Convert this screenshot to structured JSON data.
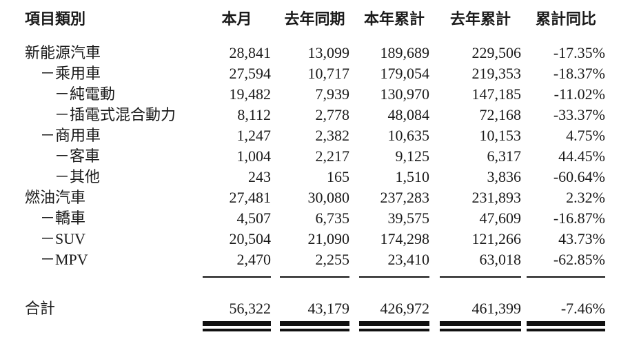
{
  "document": {
    "type": "monthly-sales-table",
    "colors": {
      "text": "#1b1b1b",
      "rule": "#111111",
      "background": "#ffffff"
    }
  },
  "table": {
    "columns": [
      {
        "label": "項目類別"
      },
      {
        "label": "本月"
      },
      {
        "label": "去年同期"
      },
      {
        "label": "本年累計"
      },
      {
        "label": "去年累計"
      },
      {
        "label": "累計同比"
      }
    ],
    "rows": [
      {
        "label": "新能源汽車",
        "indent": 0,
        "values": [
          "28,841",
          "13,099",
          "189,689",
          "229,506",
          "-17.35%"
        ]
      },
      {
        "label": "－乘用車",
        "indent": 1,
        "values": [
          "27,594",
          "10,717",
          "179,054",
          "219,353",
          "-18.37%"
        ]
      },
      {
        "label": "－純電動",
        "indent": 2,
        "values": [
          "19,482",
          "7,939",
          "130,970",
          "147,185",
          "-11.02%"
        ]
      },
      {
        "label": "－插電式混合動力",
        "indent": 2,
        "values": [
          "8,112",
          "2,778",
          "48,084",
          "72,168",
          "-33.37%"
        ]
      },
      {
        "label": "－商用車",
        "indent": 1,
        "values": [
          "1,247",
          "2,382",
          "10,635",
          "10,153",
          "4.75%"
        ]
      },
      {
        "label": "－客車",
        "indent": 2,
        "values": [
          "1,004",
          "2,217",
          "9,125",
          "6,317",
          "44.45%"
        ]
      },
      {
        "label": "－其他",
        "indent": 2,
        "values": [
          "243",
          "165",
          "1,510",
          "3,836",
          "-60.64%"
        ]
      },
      {
        "label": "燃油汽車",
        "indent": 0,
        "values": [
          "27,481",
          "30,080",
          "237,283",
          "231,893",
          "2.32%"
        ]
      },
      {
        "label": "－轎車",
        "indent": 1,
        "values": [
          "4,507",
          "6,735",
          "39,575",
          "47,609",
          "-16.87%"
        ]
      },
      {
        "label": "－SUV",
        "indent": 1,
        "values": [
          "20,504",
          "21,090",
          "174,298",
          "121,266",
          "43.73%"
        ]
      },
      {
        "label": "－MPV",
        "indent": 1,
        "values": [
          "2,470",
          "2,255",
          "23,410",
          "63,018",
          "-62.85%"
        ]
      }
    ],
    "total": {
      "label": "合計",
      "values": [
        "56,322",
        "43,179",
        "426,972",
        "461,399",
        "-7.46%"
      ]
    }
  }
}
